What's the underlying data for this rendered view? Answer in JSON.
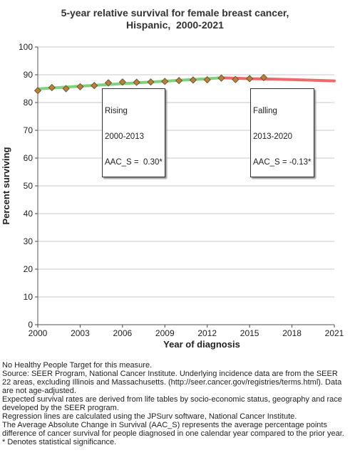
{
  "chart_data": {
    "type": "line",
    "title": [
      "5-year relative survival for female breast cancer,",
      "Hispanic,  2000-2021"
    ],
    "xlabel": "Year of diagnosis",
    "ylabel": "Percent surviving",
    "xlim": [
      2000,
      2021
    ],
    "ylim": [
      0,
      100
    ],
    "x_ticks": [
      2000,
      2003,
      2006,
      2009,
      2012,
      2015,
      2018,
      2021
    ],
    "y_ticks": [
      0,
      10,
      20,
      30,
      40,
      50,
      60,
      70,
      80,
      90,
      100
    ],
    "grid": true,
    "series": [
      {
        "x": [
          2000,
          2001,
          2002,
          2003,
          2004,
          2005,
          2006,
          2007,
          2008,
          2009,
          2010,
          2011,
          2012,
          2013,
          2014,
          2015,
          2016
        ],
        "y": [
          84.3,
          85.4,
          85.0,
          85.7,
          86.1,
          87.1,
          87.4,
          87.3,
          87.4,
          87.6,
          87.9,
          88.1,
          88.2,
          88.8,
          88.3,
          88.6,
          89.0
        ],
        "color": "#8B7D3A"
      },
      {
        "x": [
          2000,
          2003,
          2006,
          2009,
          2012,
          2013
        ],
        "y": [
          84.9,
          85.9,
          86.8,
          87.7,
          88.6,
          88.9
        ],
        "color": "#7ED17E"
      },
      {
        "x": [
          2013,
          2015,
          2017,
          2019,
          2021
        ],
        "y": [
          88.9,
          88.6,
          88.4,
          88.1,
          87.8
        ],
        "color": "#EE6A6A"
      }
    ],
    "annotations": [
      {
        "lines": [
          "Rising",
          "2000-2013",
          "AAC_S =  0.30*"
        ]
      },
      {
        "lines": [
          "Falling",
          "2013-2020",
          "AAC_S = -0.13*"
        ]
      }
    ]
  },
  "footnotes": [
    "No Healthy People Target for this measure.",
    "Source: SEER Program, National Cancer Institute. Underlying incidence data are from the SEER 22 areas, excluding Illinois and Massachusetts. (http://seer.cancer.gov/registries/terms.html). Data are not age-adjusted.",
    "Expected survival rates are derived from life tables by socio-economic status, geography and race developed by the SEER program.",
    "Regression lines are calculated using the JPSurv software, National Cancer Institute.",
    "The Average Absolute Change in Survival (AAC_S) represents the average percentage points difference of cancer survival for people diagnosed in one calendar year compared to the prior year.",
    "* Denotes statistical significance."
  ]
}
